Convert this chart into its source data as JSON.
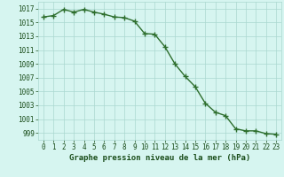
{
  "hours": [
    0,
    1,
    2,
    3,
    4,
    5,
    6,
    7,
    8,
    9,
    10,
    11,
    12,
    13,
    14,
    15,
    16,
    17,
    18,
    19,
    20,
    21,
    22,
    23
  ],
  "pressure": [
    1015.8,
    1016.0,
    1016.9,
    1016.5,
    1016.9,
    1016.5,
    1016.2,
    1015.8,
    1015.7,
    1015.2,
    1013.4,
    1013.3,
    1011.5,
    1009.0,
    1007.2,
    1005.7,
    1003.3,
    1002.0,
    1001.5,
    999.6,
    999.3,
    999.3,
    998.9,
    998.8
  ],
  "line_color": "#2d6e2d",
  "marker": "+",
  "bg_color": "#d6f5f0",
  "grid_color": "#aad8d0",
  "xlabel": "Graphe pression niveau de la mer (hPa)",
  "tick_color": "#1a4d1a",
  "ylim": [
    998.0,
    1018.0
  ],
  "yticks": [
    999,
    1001,
    1003,
    1005,
    1007,
    1009,
    1011,
    1013,
    1015,
    1017
  ],
  "xlim": [
    -0.5,
    23.5
  ],
  "xticks": [
    0,
    1,
    2,
    3,
    4,
    5,
    6,
    7,
    8,
    9,
    10,
    11,
    12,
    13,
    14,
    15,
    16,
    17,
    18,
    19,
    20,
    21,
    22,
    23
  ],
  "tick_fontsize": 5.5,
  "xlabel_fontsize": 6.5,
  "linewidth": 1.0,
  "markersize": 4,
  "markeredgewidth": 1.0
}
